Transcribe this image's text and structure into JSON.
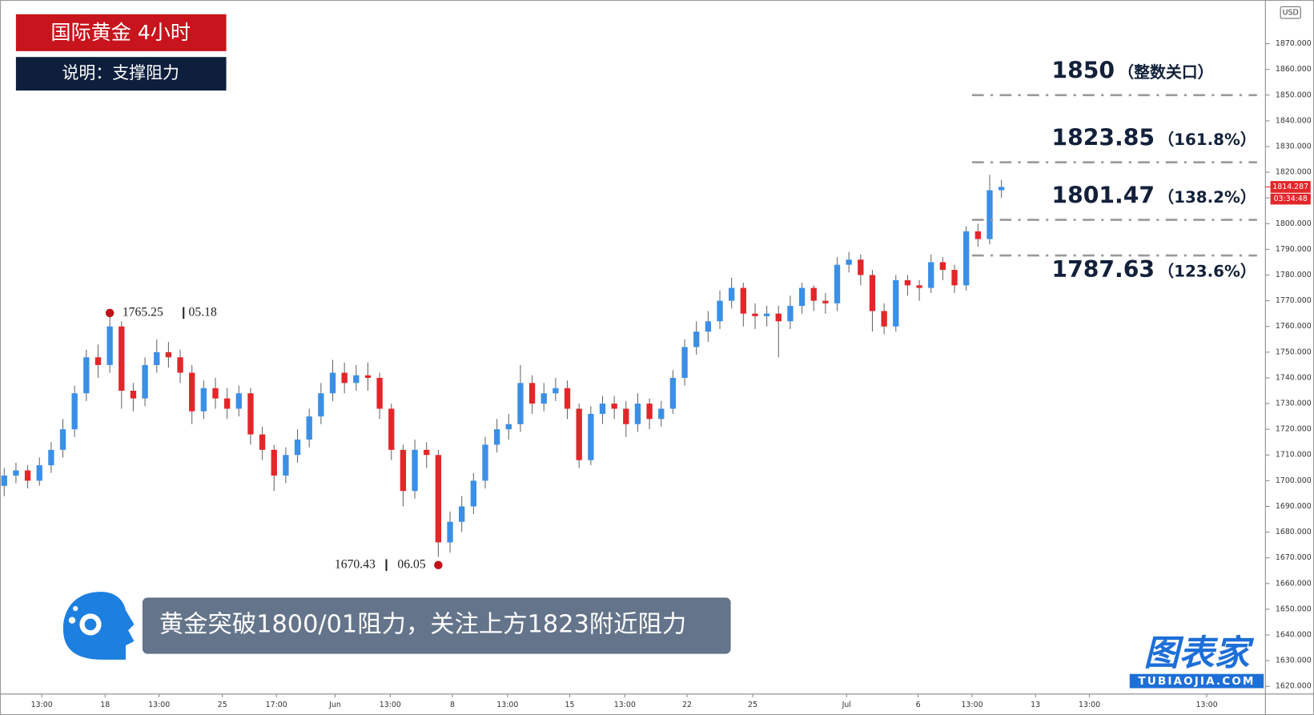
{
  "header": {
    "title": "国际黄金 4小时",
    "subtitle": "说明：支撑阻力"
  },
  "caption": "黄金突破1800/01阻力，关注上方1823附近阻力",
  "logo": {
    "name": "图表家",
    "site": "TUBIAOJIA.COM"
  },
  "chart_data": {
    "type": "candlestick",
    "currency": "USD",
    "up_color": "#3a8fe6",
    "down_color": "#e3262a",
    "open": [
      1698,
      1702,
      1704,
      1700,
      1706,
      1712,
      1720,
      1734,
      1748,
      1745,
      1760,
      1735,
      1732,
      1745,
      1750,
      1748,
      1742,
      1727,
      1736,
      1732,
      1728,
      1734,
      1718,
      1712,
      1702,
      1710,
      1716,
      1725,
      1734,
      1742,
      1738,
      1741,
      1740,
      1728,
      1712,
      1696,
      1712,
      1710,
      1676,
      1684,
      1690,
      1700,
      1714,
      1720,
      1722,
      1738,
      1730,
      1734,
      1736,
      1728,
      1708,
      1726,
      1730,
      1728,
      1722,
      1730,
      1724,
      1728,
      1740,
      1752,
      1758,
      1762,
      1770,
      1775,
      1765,
      1764,
      1765,
      1762,
      1768,
      1775,
      1770,
      1769,
      1784,
      1786,
      1780,
      1766,
      1760,
      1778,
      1776,
      1775,
      1785,
      1782,
      1776,
      1797,
      1794,
      1813
    ],
    "high": [
      1705,
      1707,
      1706,
      1709,
      1715,
      1724,
      1737,
      1751,
      1753,
      1765.25,
      1762,
      1738,
      1748,
      1755,
      1754,
      1751,
      1745,
      1739,
      1740,
      1736,
      1737,
      1736,
      1721,
      1714,
      1713,
      1720,
      1728,
      1738,
      1747,
      1746,
      1745,
      1746,
      1742,
      1730,
      1714,
      1716,
      1715,
      1712,
      1688,
      1694,
      1703,
      1717,
      1724,
      1726,
      1745,
      1741,
      1738,
      1740,
      1739,
      1730,
      1729,
      1733,
      1733,
      1731,
      1734,
      1732,
      1731,
      1743,
      1755,
      1762,
      1766,
      1774,
      1779,
      1777,
      1769,
      1768,
      1768,
      1772,
      1777,
      1776,
      1773,
      1787,
      1789,
      1788,
      1782,
      1769,
      1780,
      1780,
      1778,
      1788,
      1787,
      1784,
      1799,
      1800,
      1819,
      1817
    ],
    "low": [
      1694,
      1699,
      1697,
      1698,
      1703,
      1709,
      1717,
      1731,
      1740,
      1742,
      1728,
      1727,
      1729,
      1742,
      1744,
      1738,
      1722,
      1724,
      1728,
      1724,
      1725,
      1714,
      1708,
      1696,
      1699,
      1707,
      1713,
      1722,
      1731,
      1734,
      1735,
      1735,
      1724,
      1708,
      1690,
      1693,
      1705,
      1670.43,
      1672,
      1680,
      1687,
      1697,
      1711,
      1716,
      1719,
      1726,
      1727,
      1731,
      1724,
      1705,
      1706,
      1722,
      1724,
      1717,
      1719,
      1720,
      1721,
      1726,
      1737,
      1749,
      1754,
      1759,
      1767,
      1760,
      1759,
      1760,
      1748,
      1759,
      1765,
      1766,
      1765,
      1766,
      1781,
      1776,
      1758,
      1757,
      1758,
      1772,
      1770,
      1773,
      1778,
      1773,
      1774,
      1791,
      1792,
      1810
    ],
    "close": [
      1702,
      1704,
      1700,
      1706,
      1712,
      1720,
      1734,
      1748,
      1745,
      1760,
      1735,
      1732,
      1745,
      1750,
      1748,
      1742,
      1727,
      1736,
      1732,
      1728,
      1734,
      1718,
      1712,
      1702,
      1710,
      1716,
      1725,
      1734,
      1742,
      1738,
      1741,
      1740,
      1728,
      1712,
      1696,
      1712,
      1710,
      1676,
      1684,
      1690,
      1700,
      1714,
      1720,
      1722,
      1738,
      1730,
      1734,
      1736,
      1728,
      1708,
      1726,
      1730,
      1728,
      1722,
      1730,
      1724,
      1728,
      1740,
      1752,
      1758,
      1762,
      1770,
      1775,
      1765,
      1764,
      1765,
      1762,
      1768,
      1775,
      1770,
      1769,
      1784,
      1786,
      1780,
      1766,
      1760,
      1778,
      1776,
      1775,
      1785,
      1782,
      1776,
      1797,
      1794,
      1813,
      1814.287
    ],
    "xlim": [
      -0.36,
      107.5
    ],
    "xticks": [
      {
        "value": 3.2,
        "label": "13:00"
      },
      {
        "value": 8.6,
        "label": "18"
      },
      {
        "value": 13.2,
        "label": "13:00"
      },
      {
        "value": 18.6,
        "label": "25"
      },
      {
        "value": 23.2,
        "label": "17:00"
      },
      {
        "value": 28.2,
        "label": "Jun"
      },
      {
        "value": 32.9,
        "label": "13:00"
      },
      {
        "value": 38.2,
        "label": "8"
      },
      {
        "value": 42.9,
        "label": "13:00"
      },
      {
        "value": 48.2,
        "label": "15"
      },
      {
        "value": 52.9,
        "label": "13:00"
      },
      {
        "value": 58.2,
        "label": "22"
      },
      {
        "value": 63.8,
        "label": "25"
      },
      {
        "value": 71.8,
        "label": "Jul"
      },
      {
        "value": 77.9,
        "label": "6"
      },
      {
        "value": 82.5,
        "label": "13:00"
      },
      {
        "value": 87.9,
        "label": "13"
      },
      {
        "value": 92.5,
        "label": "13:00"
      },
      {
        "value": 102.5,
        "label": "13:00"
      }
    ],
    "ylim": [
      1617,
      1887
    ],
    "yticks": [
      {
        "value": 1620,
        "label": "1620.000"
      },
      {
        "value": 1630,
        "label": "1630.000"
      },
      {
        "value": 1640,
        "label": "1640.000"
      },
      {
        "value": 1650,
        "label": "1650.000"
      },
      {
        "value": 1660,
        "label": "1660.000"
      },
      {
        "value": 1670,
        "label": "1670.000"
      },
      {
        "value": 1680,
        "label": "1680.000"
      },
      {
        "value": 1690,
        "label": "1690.000"
      },
      {
        "value": 1700,
        "label": "1700.000"
      },
      {
        "value": 1710,
        "label": "1710.000"
      },
      {
        "value": 1720,
        "label": "1720.000"
      },
      {
        "value": 1730,
        "label": "1730.000"
      },
      {
        "value": 1740,
        "label": "1740.000"
      },
      {
        "value": 1750,
        "label": "1750.000"
      },
      {
        "value": 1760,
        "label": "1760.000"
      },
      {
        "value": 1770,
        "label": "1770.000"
      },
      {
        "value": 1780,
        "label": "1780.000"
      },
      {
        "value": 1790,
        "label": "1790.000"
      },
      {
        "value": 1800,
        "label": "1800.000"
      },
      {
        "value": 1810,
        "label": "1810.000"
      },
      {
        "value": 1820,
        "label": "1820.000"
      },
      {
        "value": 1830,
        "label": "1830.000"
      },
      {
        "value": 1840,
        "label": "1840.000"
      },
      {
        "value": 1850,
        "label": "1850.000"
      },
      {
        "value": 1860,
        "label": "1860.000"
      },
      {
        "value": 1870,
        "label": "1870.000"
      }
    ],
    "last_price": 1814.287,
    "countdown": "03:34:48",
    "levels": [
      {
        "value": 1850,
        "note": "（整数关口）"
      },
      {
        "value": 1823.85,
        "note": "（161.8%）"
      },
      {
        "value": 1801.47,
        "note": "（138.2%）"
      },
      {
        "value": 1787.63,
        "note": "（123.6%）"
      }
    ],
    "annotations": [
      {
        "price": 1765.25,
        "date": "05.18"
      },
      {
        "price": 1670.43,
        "date": "06.05"
      }
    ]
  }
}
